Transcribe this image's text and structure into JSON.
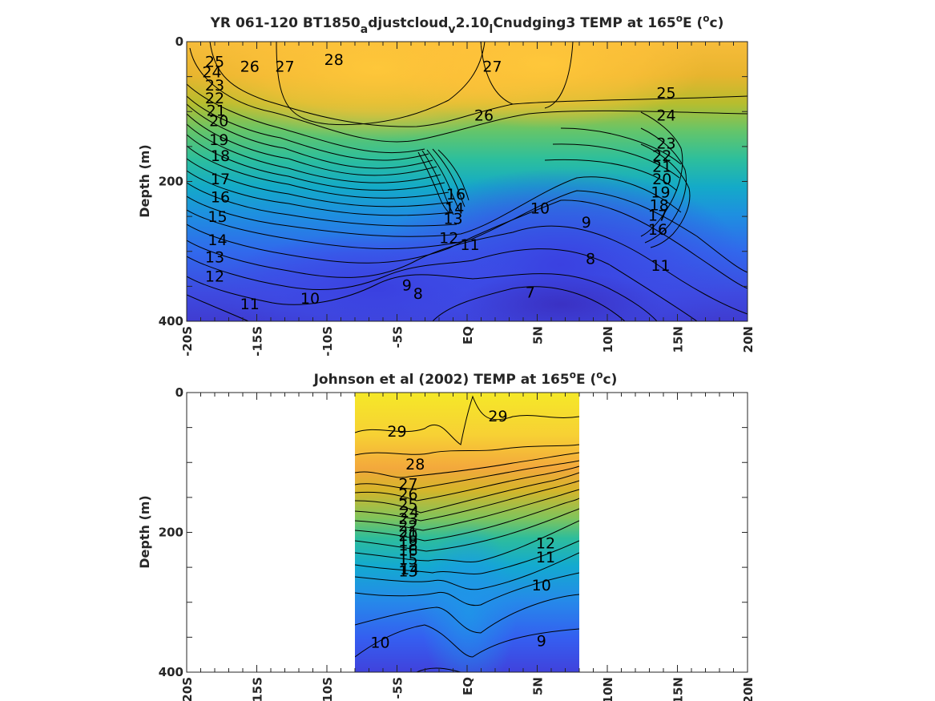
{
  "chart_data": [
    {
      "type": "contour",
      "title_parts": [
        "YR 061-120 BT1850",
        "a",
        "djustcloud",
        "v",
        "2.10",
        "l",
        "Cnudging3 TEMP at 165",
        "o",
        "E (",
        "o",
        "c)"
      ],
      "ylabel": "Depth (m)",
      "xlim": [
        -20,
        20
      ],
      "ylim": [
        0,
        400
      ],
      "y_reversed": true,
      "xticks": [
        -20,
        -15,
        -10,
        -5,
        0,
        5,
        10,
        15,
        20
      ],
      "xtick_labels": [
        "-20S",
        "-15S",
        "-10S",
        "-5S",
        "EQ",
        "5N",
        "10N",
        "15N",
        "20N"
      ],
      "yticks": [
        0,
        200,
        400
      ],
      "ytick_labels": [
        "0",
        "200",
        "400"
      ],
      "colormap": "parula",
      "data_xrange": [
        -20,
        20
      ],
      "contour_labels": [
        {
          "text": "25",
          "x": -18.0,
          "y": 28
        },
        {
          "text": "24",
          "x": -18.2,
          "y": 43
        },
        {
          "text": "23",
          "x": -18.0,
          "y": 62
        },
        {
          "text": "22",
          "x": -18.0,
          "y": 80
        },
        {
          "text": "21",
          "x": -17.9,
          "y": 98
        },
        {
          "text": "20",
          "x": -17.7,
          "y": 113
        },
        {
          "text": "19",
          "x": -17.7,
          "y": 140
        },
        {
          "text": "18",
          "x": -17.6,
          "y": 163
        },
        {
          "text": "17",
          "x": -17.6,
          "y": 196
        },
        {
          "text": "16",
          "x": -17.6,
          "y": 222
        },
        {
          "text": "15",
          "x": -17.8,
          "y": 250
        },
        {
          "text": "14",
          "x": -17.8,
          "y": 283
        },
        {
          "text": "13",
          "x": -18.0,
          "y": 308
        },
        {
          "text": "12",
          "x": -18.0,
          "y": 335
        },
        {
          "text": "11",
          "x": -15.5,
          "y": 375
        },
        {
          "text": "10",
          "x": -11.2,
          "y": 367
        },
        {
          "text": "26",
          "x": -15.5,
          "y": 35
        },
        {
          "text": "27",
          "x": -13.0,
          "y": 35
        },
        {
          "text": "28",
          "x": -9.5,
          "y": 25
        },
        {
          "text": "27",
          "x": 1.8,
          "y": 35
        },
        {
          "text": "26",
          "x": 1.2,
          "y": 105
        },
        {
          "text": "25",
          "x": 14.2,
          "y": 73
        },
        {
          "text": "24",
          "x": 14.2,
          "y": 105
        },
        {
          "text": "23",
          "x": 14.2,
          "y": 145
        },
        {
          "text": "22",
          "x": 13.9,
          "y": 163
        },
        {
          "text": "21",
          "x": 13.9,
          "y": 178
        },
        {
          "text": "20",
          "x": 13.9,
          "y": 196
        },
        {
          "text": "19",
          "x": 13.8,
          "y": 215
        },
        {
          "text": "18",
          "x": 13.7,
          "y": 233
        },
        {
          "text": "17",
          "x": 13.6,
          "y": 248
        },
        {
          "text": "16",
          "x": 13.6,
          "y": 268
        },
        {
          "text": "16",
          "x": -0.8,
          "y": 218
        },
        {
          "text": "14",
          "x": -0.9,
          "y": 238
        },
        {
          "text": "13",
          "x": -1.0,
          "y": 253
        },
        {
          "text": "12",
          "x": -1.3,
          "y": 280
        },
        {
          "text": "11",
          "x": 0.2,
          "y": 290
        },
        {
          "text": "10",
          "x": 5.2,
          "y": 238
        },
        {
          "text": "9",
          "x": 8.5,
          "y": 258
        },
        {
          "text": "8",
          "x": 8.8,
          "y": 310
        },
        {
          "text": "11",
          "x": 13.8,
          "y": 320
        },
        {
          "text": "9",
          "x": -4.3,
          "y": 348
        },
        {
          "text": "8",
          "x": -3.5,
          "y": 360
        },
        {
          "text": "7",
          "x": 4.5,
          "y": 358
        }
      ]
    },
    {
      "type": "contour",
      "title_parts": [
        "Johnson et al (2002) TEMP at 165",
        "o",
        "E (",
        "o",
        "c)"
      ],
      "ylabel": "Depth (m)",
      "xlim": [
        -20,
        20
      ],
      "ylim": [
        0,
        400
      ],
      "y_reversed": true,
      "xticks": [
        -20,
        -15,
        -10,
        -5,
        0,
        5,
        10,
        15,
        20
      ],
      "xtick_labels": [
        "-20S",
        "-15S",
        "-10S",
        "-5S",
        "EQ",
        "5N",
        "10N",
        "15N",
        "20N"
      ],
      "yticks": [
        0,
        200,
        400
      ],
      "ytick_labels": [
        "0",
        "200",
        "400"
      ],
      "colormap": "parula",
      "data_xrange": [
        -8,
        8
      ],
      "contour_labels": [
        {
          "text": "29",
          "x": -5.0,
          "y": 55
        },
        {
          "text": "29",
          "x": 2.2,
          "y": 33
        },
        {
          "text": "28",
          "x": -3.7,
          "y": 102
        },
        {
          "text": "27",
          "x": -4.2,
          "y": 130
        },
        {
          "text": "26",
          "x": -4.2,
          "y": 145
        },
        {
          "text": "25",
          "x": -4.2,
          "y": 160
        },
        {
          "text": "24",
          "x": -4.1,
          "y": 170
        },
        {
          "text": "23",
          "x": -4.2,
          "y": 180
        },
        {
          "text": "22",
          "x": -4.2,
          "y": 190
        },
        {
          "text": "21",
          "x": -4.2,
          "y": 198
        },
        {
          "text": "20",
          "x": -4.2,
          "y": 204
        },
        {
          "text": "19",
          "x": -4.2,
          "y": 212
        },
        {
          "text": "18",
          "x": -4.2,
          "y": 218
        },
        {
          "text": "16",
          "x": -4.2,
          "y": 225
        },
        {
          "text": "15",
          "x": -4.2,
          "y": 238
        },
        {
          "text": "14",
          "x": -4.1,
          "y": 252
        },
        {
          "text": "13",
          "x": -4.2,
          "y": 255
        },
        {
          "text": "12",
          "x": 5.6,
          "y": 215
        },
        {
          "text": "11",
          "x": 5.6,
          "y": 235
        },
        {
          "text": "10",
          "x": 5.3,
          "y": 275
        },
        {
          "text": "10",
          "x": -6.2,
          "y": 357
        },
        {
          "text": "9",
          "x": 5.3,
          "y": 355
        }
      ]
    }
  ]
}
